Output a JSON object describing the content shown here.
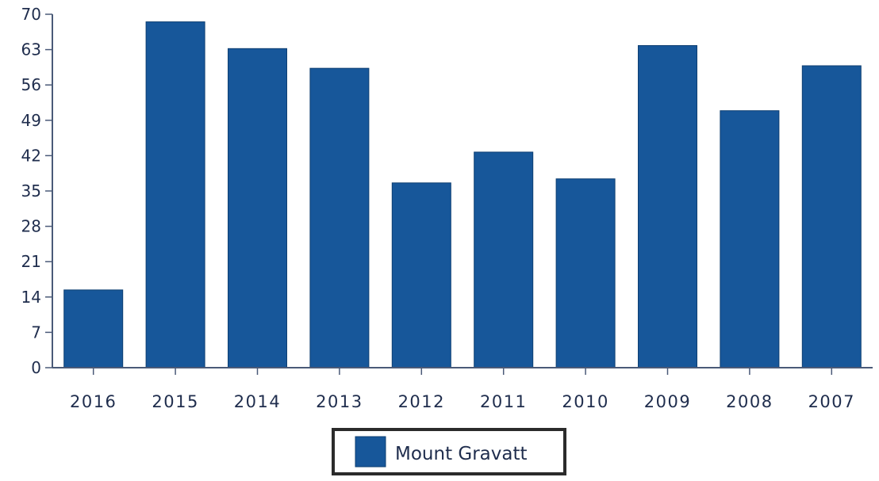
{
  "chart_data": {
    "type": "bar",
    "categories": [
      "2016",
      "2015",
      "2014",
      "2013",
      "2012",
      "2011",
      "2010",
      "2009",
      "2008",
      "2007"
    ],
    "series": [
      {
        "name": "Mount Gravatt",
        "values": [
          15.4,
          68.5,
          63.2,
          59.3,
          36.6,
          42.7,
          37.4,
          63.8,
          50.9,
          59.8
        ],
        "color": "#17579a"
      }
    ],
    "yticks": [
      "0",
      "7",
      "14",
      "21",
      "28",
      "35",
      "42",
      "49",
      "56",
      "63",
      "70"
    ],
    "ylim": [
      0,
      70
    ],
    "grid": false,
    "legend_position": "bottom-center"
  }
}
